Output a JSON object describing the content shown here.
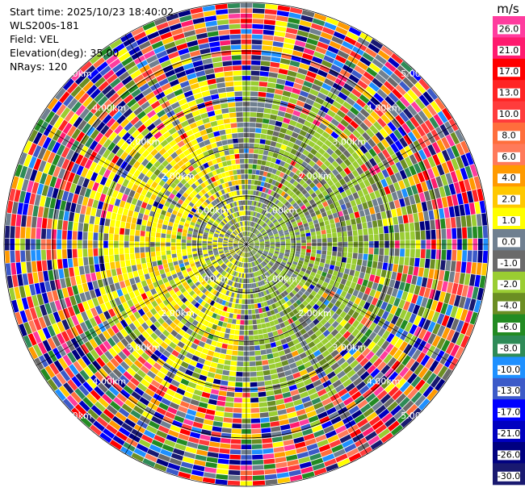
{
  "info": {
    "start_time": "Start time: 2025/10/23 18:40:02",
    "station": "WLS200s-181",
    "field": "Field: VEL",
    "elevation": "Elevation(deg): 35.00",
    "nrays": "NRays: 120"
  },
  "colorbar": {
    "unit": "m/s",
    "tick_labels": [
      "26.0",
      "21.0",
      "17.0",
      "13.0",
      "10.0",
      "8.0",
      "6.0",
      "4.0",
      "2.0",
      "1.0",
      "0.0",
      "-1.0",
      "-2.0",
      "-4.0",
      "-6.0",
      "-8.0",
      "-10.0",
      "-13.0",
      "-17.0",
      "-21.0",
      "-26.0",
      "-30.0"
    ],
    "colors": [
      "#ff3c9e",
      "#ff1a6e",
      "#ff0000",
      "#ff2424",
      "#ff3c3c",
      "#ff6e3c",
      "#ff7a5a",
      "#ff9a00",
      "#ffc800",
      "#ffff00",
      "#708090",
      "#6a6a6a",
      "#9acd32",
      "#6b8e23",
      "#228b22",
      "#2e8b57",
      "#1e90ff",
      "#3c5ac8",
      "#0000ff",
      "#0000c0",
      "#000080",
      "#191970"
    ]
  },
  "chart_data": {
    "type": "heatmap",
    "subtype": "polar-ppi",
    "field": "VEL",
    "unit": "m/s",
    "nrays": 120,
    "elevation_deg": 35.0,
    "range_ring_labels": [
      "1.00km",
      "2.00km",
      "3.00km",
      "4.00km",
      "5.00km"
    ],
    "range_ring_labels_present": {
      "upper_left": [
        "1.00km",
        "2.00km",
        "3.00km",
        "4.00km",
        "5.00km"
      ],
      "upper_right": [
        "1.00km",
        "2.00km",
        "3.00km",
        "4.00km",
        "5.00km"
      ],
      "lower_left": [
        "1.00km",
        "2.00km",
        "3.00km",
        "4.00km",
        "5.00km"
      ],
      "lower_right": [
        "1.00km",
        "2.00km",
        "3.00km",
        "4.00km",
        "5.00km"
      ]
    },
    "color_range": [
      -30,
      30
    ],
    "pattern": "near range: approaching (yellow/green) on west, receding (green) on east; far range noisy"
  }
}
